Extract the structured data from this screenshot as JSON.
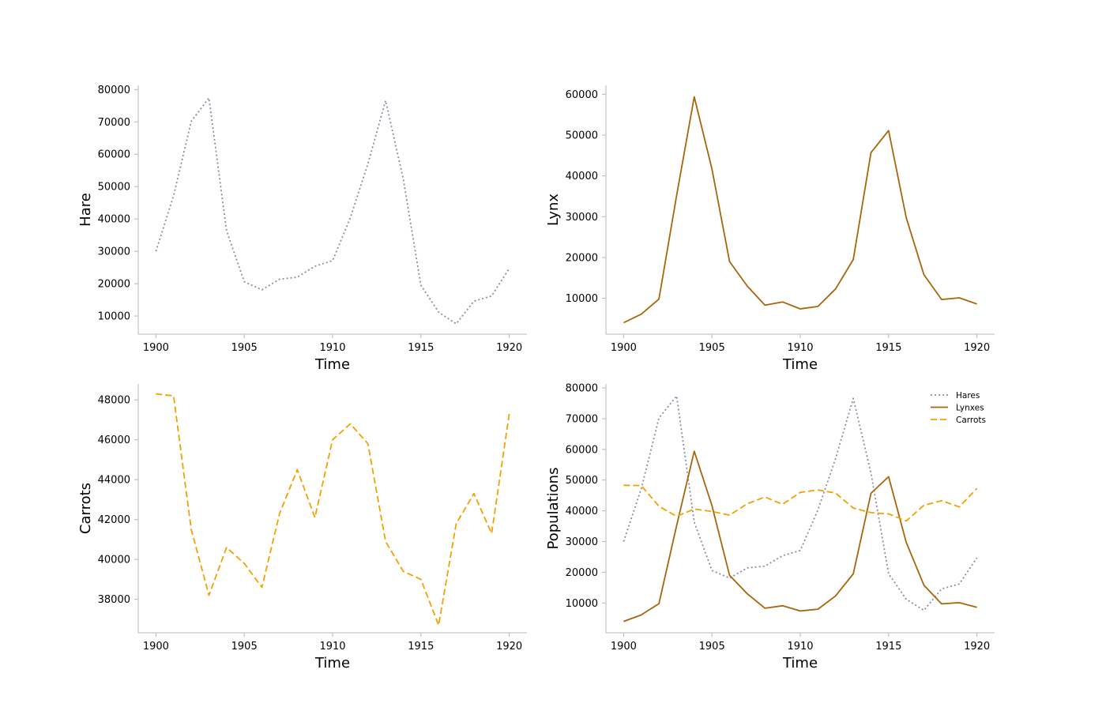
{
  "colors": {
    "hare": "#8e8aa6",
    "lynx": "#a8650a",
    "carrot": "#f5a000"
  },
  "chart_data": [
    {
      "type": "line",
      "id": "hare",
      "xlabel": "Time",
      "ylabel": "Hare",
      "xlim": [
        1899,
        1921
      ],
      "ylim": [
        4400,
        81300
      ],
      "xticks": [
        1900,
        1905,
        1910,
        1915,
        1920
      ],
      "yticks": [
        10000,
        20000,
        30000,
        40000,
        50000,
        60000,
        70000,
        80000
      ],
      "grid": false,
      "series": [
        {
          "color_key": "hare",
          "dash": "dotted",
          "x": [
            1900,
            1901,
            1902,
            1903,
            1904,
            1905,
            1906,
            1907,
            1908,
            1909,
            1910,
            1911,
            1912,
            1913,
            1914,
            1915,
            1916,
            1917,
            1918,
            1919,
            1920
          ],
          "values": [
            30000,
            47200,
            70200,
            77400,
            36300,
            20600,
            18100,
            21400,
            22000,
            25400,
            27100,
            40300,
            57000,
            76600,
            52300,
            19500,
            11200,
            7600,
            14600,
            16200,
            24700
          ]
        }
      ]
    },
    {
      "type": "line",
      "id": "lynx",
      "xlabel": "Time",
      "ylabel": "Lynx",
      "xlim": [
        1899,
        1921
      ],
      "ylim": [
        1200,
        62200
      ],
      "xticks": [
        1900,
        1905,
        1910,
        1915,
        1920
      ],
      "yticks": [
        10000,
        20000,
        30000,
        40000,
        50000,
        60000
      ],
      "grid": false,
      "series": [
        {
          "color_key": "lynx",
          "dash": "solid",
          "x": [
            1900,
            1901,
            1902,
            1903,
            1904,
            1905,
            1906,
            1907,
            1908,
            1909,
            1910,
            1911,
            1912,
            1913,
            1914,
            1915,
            1916,
            1917,
            1918,
            1919,
            1920
          ],
          "values": [
            4000,
            6100,
            9800,
            35200,
            59400,
            41700,
            19000,
            13000,
            8300,
            9100,
            7400,
            8000,
            12300,
            19500,
            45700,
            51100,
            29700,
            15800,
            9700,
            10100,
            8600
          ]
        }
      ]
    },
    {
      "type": "line",
      "id": "carrots",
      "xlabel": "Time",
      "ylabel": "Carrots",
      "xlim": [
        1899,
        1921
      ],
      "ylim": [
        36320,
        48800
      ],
      "xticks": [
        1900,
        1905,
        1910,
        1915,
        1920
      ],
      "yticks": [
        38000,
        40000,
        42000,
        44000,
        46000,
        48000
      ],
      "grid": false,
      "series": [
        {
          "color_key": "carrot",
          "dash": "dashed",
          "x": [
            1900,
            1901,
            1902,
            1903,
            1904,
            1905,
            1906,
            1907,
            1908,
            1909,
            1910,
            1911,
            1912,
            1913,
            1914,
            1915,
            1916,
            1917,
            1918,
            1919,
            1920
          ],
          "values": [
            48300,
            48200,
            41500,
            38200,
            40600,
            39800,
            38600,
            42300,
            44500,
            42100,
            46000,
            46800,
            45800,
            40900,
            39400,
            39000,
            36700,
            41800,
            43300,
            41300,
            47300
          ]
        }
      ]
    },
    {
      "type": "line",
      "id": "populations",
      "xlabel": "Time",
      "ylabel": "Populations",
      "xlim": [
        1899,
        1921
      ],
      "ylim": [
        300,
        81300
      ],
      "xticks": [
        1900,
        1905,
        1910,
        1915,
        1920
      ],
      "yticks": [
        10000,
        20000,
        30000,
        40000,
        50000,
        60000,
        70000,
        80000
      ],
      "grid": false,
      "legend": "top-right",
      "series": [
        {
          "name": "Hares",
          "color_key": "hare",
          "dash": "dotted",
          "x": [
            1900,
            1901,
            1902,
            1903,
            1904,
            1905,
            1906,
            1907,
            1908,
            1909,
            1910,
            1911,
            1912,
            1913,
            1914,
            1915,
            1916,
            1917,
            1918,
            1919,
            1920
          ],
          "values": [
            30000,
            47200,
            70200,
            77400,
            36300,
            20600,
            18100,
            21400,
            22000,
            25400,
            27100,
            40300,
            57000,
            76600,
            52300,
            19500,
            11200,
            7600,
            14600,
            16200,
            24700
          ]
        },
        {
          "name": "Lynxes",
          "color_key": "lynx",
          "dash": "solid",
          "x": [
            1900,
            1901,
            1902,
            1903,
            1904,
            1905,
            1906,
            1907,
            1908,
            1909,
            1910,
            1911,
            1912,
            1913,
            1914,
            1915,
            1916,
            1917,
            1918,
            1919,
            1920
          ],
          "values": [
            4000,
            6100,
            9800,
            35200,
            59400,
            41700,
            19000,
            13000,
            8300,
            9100,
            7400,
            8000,
            12300,
            19500,
            45700,
            51100,
            29700,
            15800,
            9700,
            10100,
            8600
          ]
        },
        {
          "name": "Carrots",
          "color_key": "carrot",
          "dash": "dashed",
          "x": [
            1900,
            1901,
            1902,
            1903,
            1904,
            1905,
            1906,
            1907,
            1908,
            1909,
            1910,
            1911,
            1912,
            1913,
            1914,
            1915,
            1916,
            1917,
            1918,
            1919,
            1920
          ],
          "values": [
            48300,
            48200,
            41500,
            38200,
            40600,
            39800,
            38600,
            42300,
            44500,
            42100,
            46000,
            46800,
            45800,
            40900,
            39400,
            39000,
            36700,
            41800,
            43300,
            41300,
            47300
          ]
        }
      ]
    }
  ]
}
